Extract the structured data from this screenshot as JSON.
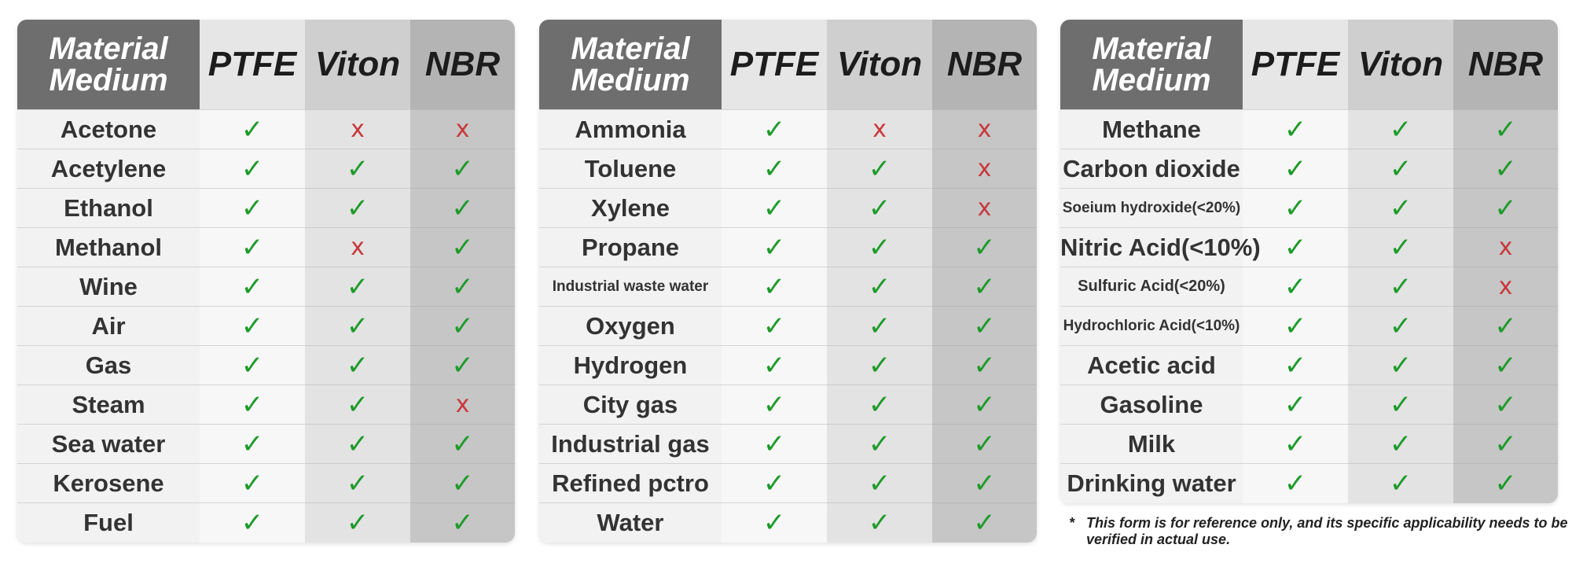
{
  "header": {
    "material_line1": "Material",
    "material_line2": "Medium",
    "col_ptfe": "PTFE",
    "col_viton": "Viton",
    "col_nbr": "NBR"
  },
  "symbols": {
    "yes": "✓",
    "no": "x"
  },
  "colors": {
    "yes": "#1e9b2a",
    "no": "#c8383c",
    "header_dark": "#6e6e6e"
  },
  "tables": [
    {
      "rows": [
        {
          "medium": "Acetone",
          "ptfe": "yes",
          "viton": "no",
          "nbr": "no"
        },
        {
          "medium": "Acetylene",
          "ptfe": "yes",
          "viton": "yes",
          "nbr": "yes"
        },
        {
          "medium": "Ethanol",
          "ptfe": "yes",
          "viton": "yes",
          "nbr": "yes"
        },
        {
          "medium": "Methanol",
          "ptfe": "yes",
          "viton": "no",
          "nbr": "yes"
        },
        {
          "medium": "Wine",
          "ptfe": "yes",
          "viton": "yes",
          "nbr": "yes"
        },
        {
          "medium": "Air",
          "ptfe": "yes",
          "viton": "yes",
          "nbr": "yes"
        },
        {
          "medium": "Gas",
          "ptfe": "yes",
          "viton": "yes",
          "nbr": "yes"
        },
        {
          "medium": "Steam",
          "ptfe": "yes",
          "viton": "yes",
          "nbr": "no"
        },
        {
          "medium": "Sea water",
          "ptfe": "yes",
          "viton": "yes",
          "nbr": "yes"
        },
        {
          "medium": "Kerosene",
          "ptfe": "yes",
          "viton": "yes",
          "nbr": "yes"
        },
        {
          "medium": "Fuel",
          "ptfe": "yes",
          "viton": "yes",
          "nbr": "yes"
        }
      ]
    },
    {
      "rows": [
        {
          "medium": "Ammonia",
          "ptfe": "yes",
          "viton": "no",
          "nbr": "no"
        },
        {
          "medium": "Toluene",
          "ptfe": "yes",
          "viton": "yes",
          "nbr": "no"
        },
        {
          "medium": "Xylene",
          "ptfe": "yes",
          "viton": "yes",
          "nbr": "no"
        },
        {
          "medium": "Propane",
          "ptfe": "yes",
          "viton": "yes",
          "nbr": "yes"
        },
        {
          "medium": "Industrial waste water",
          "ptfe": "yes",
          "viton": "yes",
          "nbr": "yes"
        },
        {
          "medium": "Oxygen",
          "ptfe": "yes",
          "viton": "yes",
          "nbr": "yes"
        },
        {
          "medium": "Hydrogen",
          "ptfe": "yes",
          "viton": "yes",
          "nbr": "yes"
        },
        {
          "medium": "City gas",
          "ptfe": "yes",
          "viton": "yes",
          "nbr": "yes"
        },
        {
          "medium": "Industrial gas",
          "ptfe": "yes",
          "viton": "yes",
          "nbr": "yes"
        },
        {
          "medium": "Refined pctro",
          "ptfe": "yes",
          "viton": "yes",
          "nbr": "yes"
        },
        {
          "medium": "Water",
          "ptfe": "yes",
          "viton": "yes",
          "nbr": "yes"
        }
      ]
    },
    {
      "rows": [
        {
          "medium": "Methane",
          "ptfe": "yes",
          "viton": "yes",
          "nbr": "yes"
        },
        {
          "medium": "Carbon dioxide",
          "ptfe": "yes",
          "viton": "yes",
          "nbr": "yes"
        },
        {
          "medium": "Soeium hydroxide(<20%)",
          "ptfe": "yes",
          "viton": "yes",
          "nbr": "yes"
        },
        {
          "medium": "Nitric Acid(<10%)",
          "ptfe": "yes",
          "viton": "yes",
          "nbr": "no"
        },
        {
          "medium": "Sulfuric Acid(<20%)",
          "ptfe": "yes",
          "viton": "yes",
          "nbr": "no"
        },
        {
          "medium": "Hydrochloric Acid(<10%)",
          "ptfe": "yes",
          "viton": "yes",
          "nbr": "yes"
        },
        {
          "medium": "Acetic acid",
          "ptfe": "yes",
          "viton": "yes",
          "nbr": "yes"
        },
        {
          "medium": "Gasoline",
          "ptfe": "yes",
          "viton": "yes",
          "nbr": "yes"
        },
        {
          "medium": "Milk",
          "ptfe": "yes",
          "viton": "yes",
          "nbr": "yes"
        },
        {
          "medium": "Drinking water",
          "ptfe": "yes",
          "viton": "yes",
          "nbr": "yes"
        }
      ]
    }
  ],
  "footnote": {
    "star": "*",
    "text": "This form is for reference only, and its specific applicability needs to be verified in actual use."
  }
}
